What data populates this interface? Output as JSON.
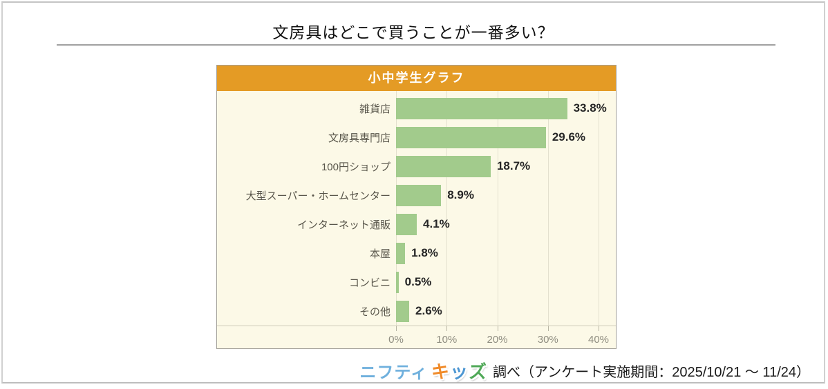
{
  "page": {
    "title": "文房具はどこで買うことが一番多い？"
  },
  "colors": {
    "panel_header_bg": "#E49B25",
    "panel_bg": "#FCF9E7",
    "bar": "#A2CB8C",
    "nifty_blue": "#6FB0DD"
  },
  "chart_data": {
    "type": "bar",
    "orientation": "horizontal",
    "title": "小中学生グラフ",
    "categories": [
      "雑貨店",
      "文房具専門店",
      "100円ショップ",
      "大型スーパー・ホームセンター",
      "インターネット通販",
      "本屋",
      "コンビニ",
      "その他"
    ],
    "values": [
      33.8,
      29.6,
      18.7,
      8.9,
      4.1,
      1.8,
      0.5,
      2.6
    ],
    "value_labels": [
      "33.8%",
      "29.6%",
      "18.7%",
      "8.9%",
      "4.1%",
      "1.8%",
      "0.5%",
      "2.6%"
    ],
    "xlabel": "",
    "ylabel": "",
    "xlim": [
      0,
      40
    ],
    "x_tick_values": [
      0,
      10,
      20,
      30,
      40
    ],
    "x_tick_labels": [
      "0%",
      "10%",
      "20%",
      "30%",
      "40%"
    ],
    "grid": true,
    "legend": false,
    "bar_color": "#A2CB8C"
  },
  "footer": {
    "logo": {
      "nifty_text": "ニフティ",
      "kids_chars": [
        {
          "char": "キ",
          "color": "#F08A28"
        },
        {
          "char": "ッ",
          "color": "#4C96D2"
        },
        {
          "char": "ズ",
          "color": "#4FA857"
        }
      ]
    },
    "text": "調べ（アンケート実施期間：2025/10/21 ～ 11/24）"
  }
}
